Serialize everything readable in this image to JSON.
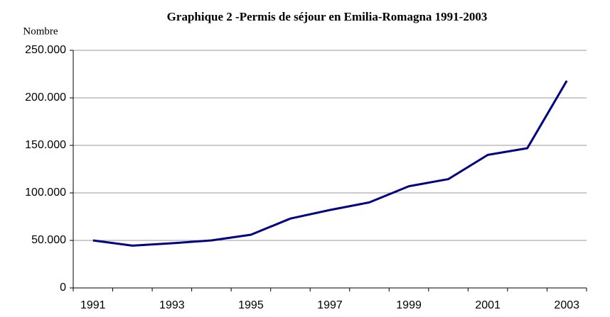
{
  "chart_data": {
    "type": "line",
    "title": "Graphique 2 -Permis de séjour en Emilia-Romagna 1991-2003",
    "y_axis_label": "Nombre",
    "categories": [
      "1991",
      null,
      "1993",
      null,
      "1995",
      null,
      "1997",
      null,
      "1999",
      null,
      "2001",
      null,
      "2003"
    ],
    "series": [
      {
        "name": "Permis de séjour",
        "color": "#000080",
        "values": [
          50000,
          44500,
          47000,
          50000,
          56000,
          73000,
          82000,
          90000,
          107000,
          114500,
          140000,
          147000,
          218000
        ]
      }
    ],
    "ylim": [
      0,
      250000
    ],
    "yticks": [
      0,
      {
        "value": 50000,
        "label": "50.000"
      },
      {
        "value": 100000,
        "label": "100.000"
      },
      {
        "value": 150000,
        "label": "150.000"
      },
      {
        "value": 200000,
        "label": "200.000"
      },
      {
        "value": 250000,
        "label": "250.000"
      }
    ],
    "grid": true
  }
}
